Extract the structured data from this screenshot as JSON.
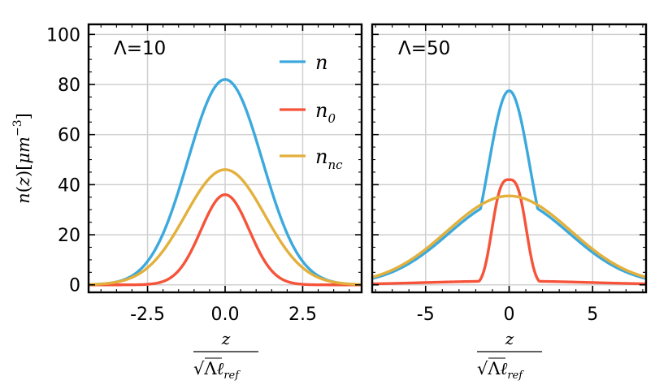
{
  "chart_data": [
    {
      "type": "line",
      "title": "Λ=10",
      "xlim": [
        -4.4,
        4.4
      ],
      "ylim": [
        -3,
        104
      ],
      "xticks": [
        -2.5,
        0.0,
        2.5
      ],
      "xtick_labels": [
        "-2.5",
        "0.0",
        "2.5"
      ],
      "yticks": [
        0,
        20,
        40,
        60,
        80,
        100
      ],
      "ytick_labels": [
        "0",
        "20",
        "40",
        "60",
        "80",
        "100"
      ],
      "grid": true,
      "series": [
        {
          "name": "n",
          "color": "#3ca9dd",
          "amplitude": 82,
          "sigma": 1.2,
          "center": 0
        },
        {
          "name": "n_0",
          "color": "#f5543a",
          "amplitude": 36,
          "sigma": 0.78,
          "center": 0
        },
        {
          "name": "n_nc",
          "color": "#e3b03c",
          "amplitude": 46,
          "sigma": 1.28,
          "center": 0
        }
      ]
    },
    {
      "type": "line",
      "title": "Λ=50",
      "xlim": [
        -8.2,
        8.2
      ],
      "ylim": [
        -3,
        104
      ],
      "xticks": [
        -5,
        0,
        5
      ],
      "xtick_labels": [
        "-5",
        "0",
        "5"
      ],
      "yticks": [
        0,
        20,
        40,
        60,
        80,
        100
      ],
      "ytick_labels": [],
      "grid": true,
      "series": [
        {
          "name": "n",
          "color": "#3ca9dd",
          "amplitude": 77.5,
          "sigma": 1.25,
          "wing_amp": 34,
          "wing_sigma": 3.6,
          "center": 0
        },
        {
          "name": "n_0",
          "color": "#f5543a",
          "amplitude": 42,
          "sigma": 0.95,
          "power": 3,
          "wing_amp": 1.5,
          "wing_sigma": 5,
          "center": 0
        },
        {
          "name": "n_nc",
          "color": "#e3b03c",
          "amplitude": 35.5,
          "sigma": 3.7,
          "center": 0
        }
      ]
    }
  ],
  "legend": {
    "placement": "upper-right of left panel",
    "entries": [
      {
        "main": "n",
        "sub": "",
        "color": "#3ca9dd"
      },
      {
        "main": "n",
        "sub": "0",
        "color": "#f5543a"
      },
      {
        "main": "n",
        "sub": "nc",
        "color": "#e3b03c"
      }
    ]
  },
  "ylabel": {
    "text": "n(z)[μm^-3]",
    "parts": {
      "n": "n",
      "open": "(",
      "z": "z",
      "close": ")",
      "bra_open": "[",
      "mu": "μ",
      "m": "m",
      "exp": "−3",
      "bra_close": "]"
    }
  },
  "xlabel": {
    "numerator": "z",
    "sqrt": "√",
    "lambda": "Λ",
    "ell": "ℓ",
    "ref": "ref"
  }
}
